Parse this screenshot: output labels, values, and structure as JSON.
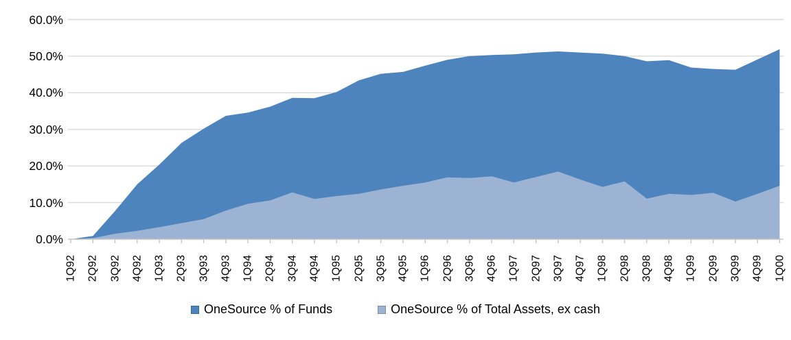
{
  "chart_data": {
    "type": "area",
    "overlap": true,
    "title": "",
    "xlabel": "",
    "ylabel": "",
    "ylim": [
      0,
      60
    ],
    "grid": true,
    "legend_position": "bottom",
    "xlabel_rotation": 90,
    "gridline_color": "#D9D9D9",
    "axis_color": "#C6C6C6",
    "text_color": "#000000",
    "yticks": {
      "values": [
        0,
        10,
        20,
        30,
        40,
        50,
        60
      ],
      "labels": [
        "0.0%",
        "10.0%",
        "20.0%",
        "30.0%",
        "40.0%",
        "50.0%",
        "60.0%"
      ]
    },
    "categories": [
      "1Q92",
      "2Q92",
      "3Q92",
      "4Q92",
      "1Q93",
      "2Q93",
      "3Q93",
      "4Q93",
      "1Q94",
      "2Q94",
      "3Q94",
      "4Q94",
      "1Q95",
      "2Q95",
      "3Q95",
      "4Q95",
      "1Q96",
      "2Q96",
      "3Q96",
      "4Q96",
      "1Q97",
      "2Q97",
      "3Q97",
      "4Q97",
      "1Q98",
      "2Q98",
      "3Q98",
      "4Q98",
      "1Q99",
      "2Q99",
      "3Q99",
      "4Q99",
      "1Q00"
    ],
    "series": [
      {
        "name": "OneSource % of Funds",
        "color": "#4E84BE",
        "values": [
          0.0,
          0.9,
          7.7,
          15.0,
          20.4,
          26.3,
          30.2,
          33.7,
          34.6,
          36.2,
          38.6,
          38.5,
          40.2,
          43.4,
          45.2,
          45.7,
          47.4,
          49.0,
          50.0,
          50.3,
          50.5,
          51.0,
          51.3,
          51.0,
          50.7,
          50.0,
          48.6,
          48.9,
          46.9,
          46.5,
          46.3,
          49.1,
          51.9
        ]
      },
      {
        "name": "OneSource % of Total Assets, ex cash",
        "color": "#9DB3D3",
        "values": [
          0.0,
          0.3,
          1.5,
          2.3,
          3.3,
          4.4,
          5.5,
          7.8,
          9.7,
          10.6,
          12.8,
          11.0,
          11.8,
          12.4,
          13.6,
          14.6,
          15.5,
          16.9,
          16.7,
          17.2,
          15.5,
          17.0,
          18.5,
          16.3,
          14.3,
          15.8,
          11.1,
          12.4,
          12.1,
          12.7,
          10.3,
          12.4,
          14.6
        ]
      }
    ]
  }
}
